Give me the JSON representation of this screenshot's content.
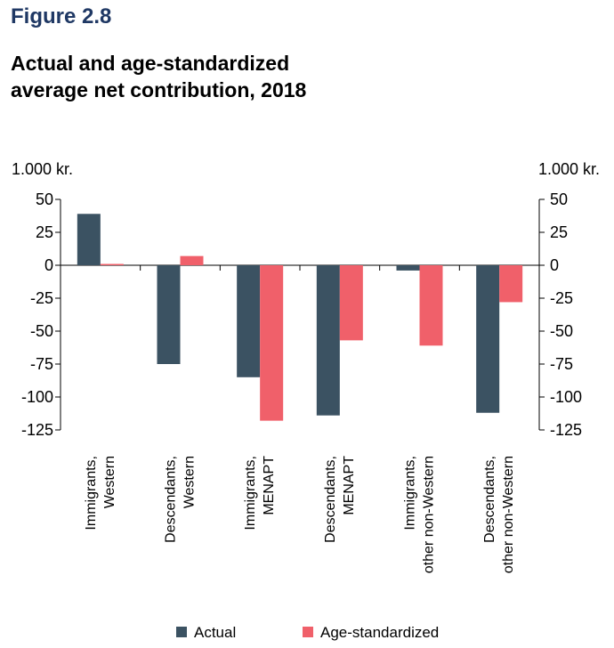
{
  "figure_label": "Figure 2.8",
  "chart_data": {
    "type": "bar",
    "title_lines": [
      "Actual and age-standardized",
      "average net contribution, 2018"
    ],
    "y_unit_left": "1.000 kr.",
    "y_unit_right": "1.000 kr.",
    "ylim": [
      -125,
      50
    ],
    "yticks": [
      50,
      25,
      0,
      -25,
      -50,
      -75,
      -100,
      -125
    ],
    "ytick_labels": [
      "50",
      "25",
      "0",
      "-25",
      "-50",
      "-75",
      "-100",
      "-125"
    ],
    "categories": [
      [
        "Immigrants,",
        "Western"
      ],
      [
        "Descendants,",
        "Western"
      ],
      [
        "Immigrants,",
        "MENAPT"
      ],
      [
        "Descendants,",
        "MENAPT"
      ],
      [
        "Immigrants,",
        "other non-Western"
      ],
      [
        "Descendants,",
        "other non-Western"
      ]
    ],
    "series": [
      {
        "name": "Actual",
        "color": "#3b5262",
        "values": [
          39,
          -75,
          -85,
          -114,
          -4,
          -112
        ]
      },
      {
        "name": "Age-standardized",
        "color": "#f0606a",
        "values": [
          1,
          7,
          -118,
          -57,
          -61,
          -28
        ]
      }
    ],
    "legend_position": "bottom",
    "grid": false
  }
}
